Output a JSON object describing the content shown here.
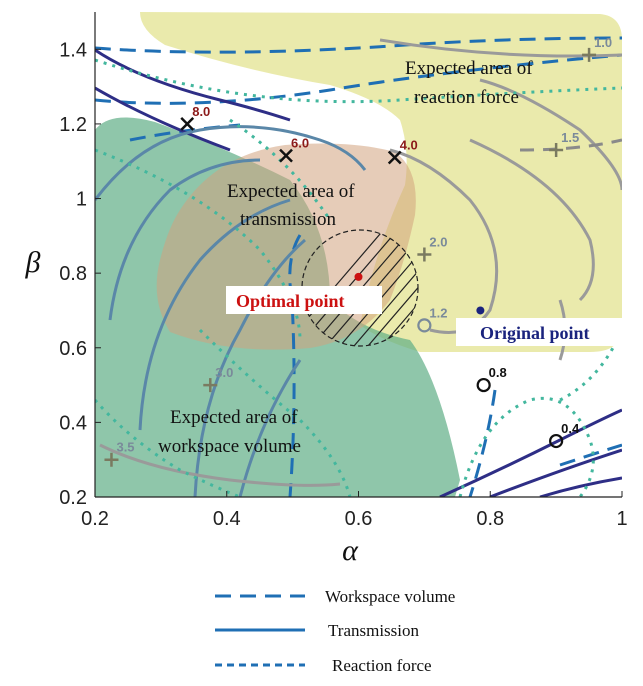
{
  "chart_data": {
    "type": "contour",
    "xlabel": "α",
    "ylabel": "β",
    "xlim": [
      0.2,
      1.0
    ],
    "ylim": [
      0.2,
      1.5
    ],
    "xticks": [
      "0.2",
      "0.4",
      "0.6",
      "0.8",
      "1"
    ],
    "yticks": [
      "0.2",
      "0.4",
      "0.6",
      "0.8",
      "1",
      "1.2",
      "1.4"
    ],
    "grid": false,
    "legend": {
      "position": "bottom",
      "items": [
        {
          "name": "Workspace volume",
          "style": "long-dash",
          "color": "#1f6fb4"
        },
        {
          "name": "Transmission",
          "style": "solid",
          "color": "#1f6fb4"
        },
        {
          "name": "Reaction force",
          "style": "short-dash",
          "color": "#1f6fb4"
        }
      ]
    },
    "regions": [
      {
        "name": "Expected area of reaction force",
        "lines": [
          "Expected area of",
          "reaction force"
        ],
        "color": "#e4e49e"
      },
      {
        "name": "Expected area of transmission",
        "lines": [
          "Expected area of",
          "transmission"
        ],
        "color": "#d8ad86"
      },
      {
        "name": "Expected area of workspace volume",
        "lines": [
          "Expected area of",
          "workspace volume"
        ],
        "color": "#5fae86"
      }
    ],
    "contour_labels": [
      {
        "text": "8.0",
        "x": 0.34,
        "y": 1.2,
        "color": "#8b1a1a",
        "marker": "x"
      },
      {
        "text": "6.0",
        "x": 0.49,
        "y": 1.115,
        "color": "#8b1a1a",
        "marker": "x"
      },
      {
        "text": "4.0",
        "x": 0.655,
        "y": 1.11,
        "color": "#8b1a1a",
        "marker": "x"
      },
      {
        "text": "2.0",
        "x": 0.7,
        "y": 0.85,
        "color": "#7a8a9a",
        "marker": "+"
      },
      {
        "text": "1.0",
        "x": 0.95,
        "y": 1.385,
        "color": "#7a8a9a",
        "marker": "+"
      },
      {
        "text": "1.5",
        "x": 0.9,
        "y": 1.13,
        "color": "#7a8a9a",
        "marker": "+"
      },
      {
        "text": "1.2",
        "x": 0.7,
        "y": 0.66,
        "color": "#7a8a9a",
        "marker": "o"
      },
      {
        "text": "0.8",
        "x": 0.79,
        "y": 0.5,
        "color": "#111111",
        "marker": "o"
      },
      {
        "text": "0.4",
        "x": 0.9,
        "y": 0.35,
        "color": "#111111",
        "marker": "o"
      },
      {
        "text": "3.0",
        "x": 0.375,
        "y": 0.5,
        "color": "#7a8a9a",
        "marker": "+"
      },
      {
        "text": "3.5",
        "x": 0.225,
        "y": 0.3,
        "color": "#7a8a9a",
        "marker": "+"
      }
    ],
    "points": [
      {
        "name": "Optimal point",
        "x": 0.6,
        "y": 0.79,
        "color": "#cc1111"
      },
      {
        "name": "Original point",
        "x": 0.785,
        "y": 0.7,
        "color": "#1a237e"
      }
    ]
  }
}
